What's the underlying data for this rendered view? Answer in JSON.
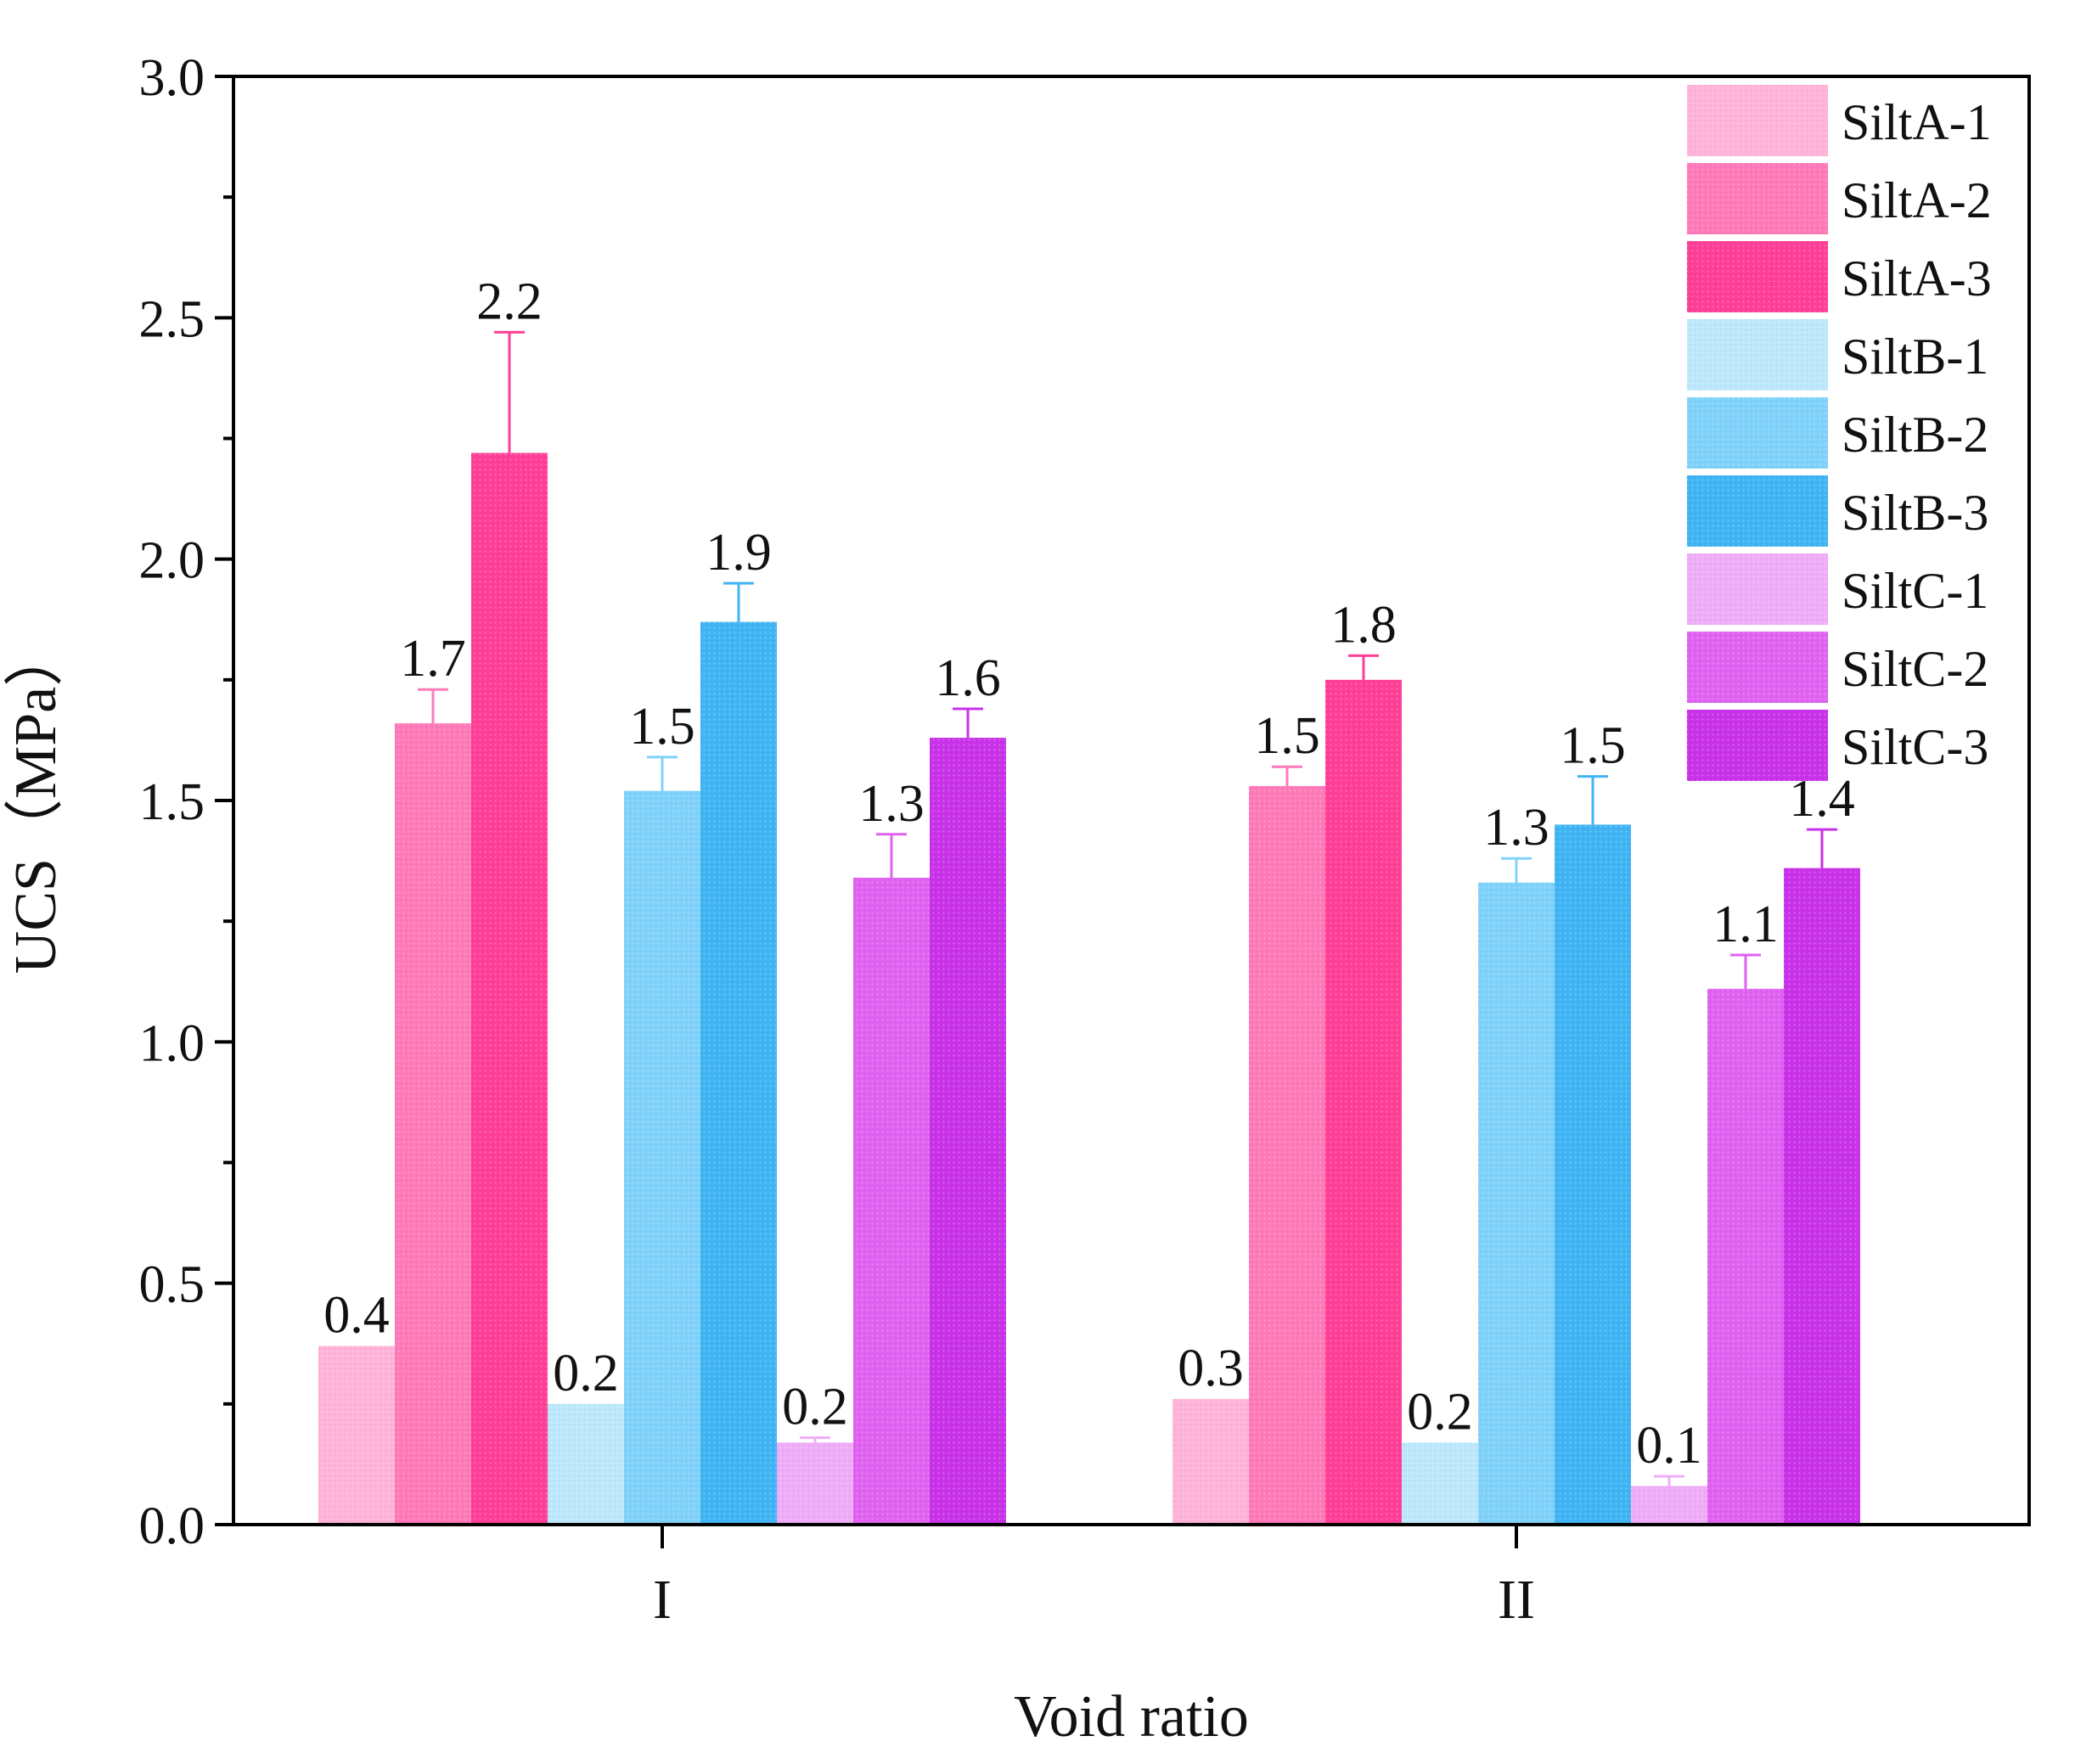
{
  "chart_data": {
    "type": "bar",
    "title": "",
    "xlabel": "Void ratio",
    "ylabel": "UCS（MPa）",
    "categories": [
      "I",
      "II"
    ],
    "ylim": [
      0,
      3.0
    ],
    "yticks": [
      "0.0",
      "0.5",
      "1.0",
      "1.5",
      "2.0",
      "2.5",
      "3.0"
    ],
    "legend_position": "top-right",
    "grid": false,
    "series": [
      {
        "name": "SiltA-1",
        "color": "#ffb3d9",
        "values": [
          0.37,
          0.26
        ],
        "errors": [
          0.0,
          0.0
        ],
        "labels": [
          "0.4",
          "0.3"
        ]
      },
      {
        "name": "SiltA-2",
        "color": "#ff7ab8",
        "values": [
          1.66,
          1.53
        ],
        "errors": [
          0.07,
          0.04
        ],
        "labels": [
          "1.7",
          "1.5"
        ]
      },
      {
        "name": "SiltA-3",
        "color": "#ff3f97",
        "values": [
          2.22,
          1.75
        ],
        "errors": [
          0.25,
          0.05
        ],
        "labels": [
          "2.2",
          "1.8"
        ]
      },
      {
        "name": "SiltB-1",
        "color": "#bde8fb",
        "values": [
          0.25,
          0.17
        ],
        "errors": [
          0.0,
          0.0
        ],
        "labels": [
          "0.2",
          "0.2"
        ]
      },
      {
        "name": "SiltB-2",
        "color": "#80d2fa",
        "values": [
          1.52,
          1.33
        ],
        "errors": [
          0.07,
          0.05
        ],
        "labels": [
          "1.5",
          "1.3"
        ]
      },
      {
        "name": "SiltB-3",
        "color": "#40b4f4",
        "values": [
          1.87,
          1.45
        ],
        "errors": [
          0.08,
          0.1
        ],
        "labels": [
          "1.9",
          "1.5"
        ]
      },
      {
        "name": "SiltC-1",
        "color": "#efadf7",
        "values": [
          0.17,
          0.08
        ],
        "errors": [
          0.01,
          0.02
        ],
        "labels": [
          "0.2",
          "0.1"
        ]
      },
      {
        "name": "SiltC-2",
        "color": "#e062f1",
        "values": [
          1.34,
          1.11
        ],
        "errors": [
          0.09,
          0.07
        ],
        "labels": [
          "1.3",
          "1.1"
        ]
      },
      {
        "name": "SiltC-3",
        "color": "#c932e9",
        "values": [
          1.63,
          1.36
        ],
        "errors": [
          0.06,
          0.08
        ],
        "labels": [
          "1.6",
          "1.4"
        ]
      }
    ]
  }
}
